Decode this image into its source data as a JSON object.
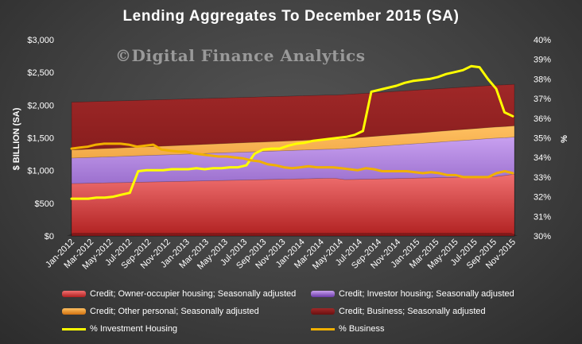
{
  "chart_data": {
    "type": "area",
    "title": "Lending Aggregates To December 2015 (SA)",
    "watermark": "©Digital Finance Analytics",
    "xlabel": "",
    "ylabel": "$ BILLION (SA)",
    "y2label": "%",
    "ylim": [
      0,
      3000
    ],
    "y2lim": [
      30,
      40
    ],
    "yticks": [
      "$0",
      "$500",
      "$1,000",
      "$1,500",
      "$2,000",
      "$2,500",
      "$3,000"
    ],
    "y2ticks": [
      "30%",
      "31%",
      "32%",
      "33%",
      "34%",
      "35%",
      "36%",
      "37%",
      "38%",
      "39%",
      "40%"
    ],
    "x_labels": [
      "Jan-2012",
      "Mar-2012",
      "May-2012",
      "Jul-2012",
      "Sep-2012",
      "Nov-2012",
      "Jan-2013",
      "Mar-2013",
      "May-2013",
      "Jul-2013",
      "Sep-2013",
      "Nov-2013",
      "Jan-2014",
      "Mar-2014",
      "May-2014",
      "Jul-2014",
      "Sep-2014",
      "Nov-2014",
      "Jan-2015",
      "Mar-2015",
      "May-2015",
      "Jul-2015",
      "Sep-2015",
      "Nov-2015"
    ],
    "stacked_series": [
      {
        "name": "Credit; Owner-occupier housing; Seasonally adjusted",
        "color": "#e04040",
        "values": [
          800,
          803,
          806,
          809,
          812,
          815,
          818,
          821,
          824,
          827,
          830,
          833,
          836,
          839,
          842,
          845,
          848,
          851,
          854,
          857,
          860,
          863,
          866,
          869,
          872,
          875,
          878,
          881,
          881,
          861,
          864,
          867,
          870,
          873,
          876,
          879,
          882,
          885,
          888,
          891,
          894,
          897,
          900,
          903,
          906,
          909,
          925,
          945
        ]
      },
      {
        "name": "Credit; Investor housing; Seasonally adjusted",
        "color": "#9b6bd6",
        "values": [
          390,
          392,
          394,
          396,
          398,
          400,
          402,
          404,
          406,
          408,
          410,
          412,
          414,
          416,
          418,
          420,
          422,
          424,
          426,
          428,
          430,
          432,
          434,
          436,
          438,
          440,
          442,
          444,
          446,
          475,
          481,
          488,
          495,
          502,
          509,
          516,
          523,
          530,
          537,
          544,
          551,
          558,
          565,
          572,
          579,
          586,
          576,
          566
        ]
      },
      {
        "name": "Credit; Other personal; Seasonally adjusted",
        "color": "#f0a030",
        "values": [
          125,
          126,
          127,
          128,
          129,
          130,
          131,
          132,
          133,
          134,
          135,
          136,
          137,
          138,
          139,
          140,
          141,
          142,
          143,
          144,
          145,
          146,
          147,
          148,
          149,
          150,
          151,
          152,
          153,
          154,
          155,
          156,
          157,
          158,
          159,
          160,
          161,
          162,
          163,
          164,
          165,
          166,
          167,
          168,
          169,
          170,
          171,
          172
        ]
      },
      {
        "name": "Credit; Business; Seasonally adjusted",
        "color": "#8a1c1c",
        "values": [
          730,
          728,
          726,
          724,
          722,
          720,
          718,
          716,
          714,
          712,
          710,
          708,
          706,
          704,
          702,
          700,
          698,
          696,
          694,
          692,
          690,
          688,
          686,
          684,
          682,
          680,
          678,
          676,
          674,
          672,
          670,
          668,
          666,
          664,
          662,
          660,
          658,
          656,
          654,
          652,
          650,
          648,
          646,
          644,
          642,
          640,
          638,
          636
        ]
      }
    ],
    "line_series": [
      {
        "name": "% Investment Housing",
        "color": "#ffff00",
        "values": [
          31.9,
          31.9,
          31.9,
          31.95,
          31.95,
          32.0,
          32.1,
          32.2,
          33.3,
          33.35,
          33.35,
          33.35,
          33.4,
          33.4,
          33.4,
          33.45,
          33.4,
          33.45,
          33.45,
          33.5,
          33.5,
          33.6,
          34.2,
          34.4,
          34.45,
          34.45,
          34.6,
          34.7,
          34.75,
          34.85,
          34.9,
          34.95,
          35.0,
          35.05,
          35.15,
          35.35,
          37.35,
          37.45,
          37.55,
          37.65,
          37.8,
          37.9,
          37.95,
          38.0,
          38.1,
          38.25,
          38.35,
          38.45,
          38.65,
          38.6,
          38.0,
          37.5,
          36.3,
          36.1
        ]
      },
      {
        "name": "% Business",
        "color": "#f0b000",
        "values": [
          34.45,
          34.5,
          34.55,
          34.65,
          34.7,
          34.7,
          34.7,
          34.65,
          34.55,
          34.6,
          34.65,
          34.4,
          34.35,
          34.3,
          34.3,
          34.2,
          34.15,
          34.1,
          34.05,
          34.05,
          34.0,
          33.95,
          33.85,
          33.8,
          33.65,
          33.6,
          33.5,
          33.45,
          33.5,
          33.55,
          33.5,
          33.5,
          33.5,
          33.45,
          33.4,
          33.35,
          33.45,
          33.4,
          33.3,
          33.3,
          33.3,
          33.3,
          33.25,
          33.2,
          33.25,
          33.2,
          33.1,
          33.1,
          33.0,
          33.0,
          33.0,
          33.0,
          33.2,
          33.3,
          33.2
        ]
      }
    ],
    "grid": false,
    "legend_position": "bottom"
  },
  "legend": {
    "owner": "Credit; Owner-occupier housing; Seasonally adjusted",
    "investor": "Credit; Investor housing; Seasonally adjusted",
    "personal": "Credit; Other personal; Seasonally adjusted",
    "business": "Credit; Business; Seasonally adjusted",
    "inv_pct": "% Investment Housing",
    "bus_pct": "% Business"
  }
}
